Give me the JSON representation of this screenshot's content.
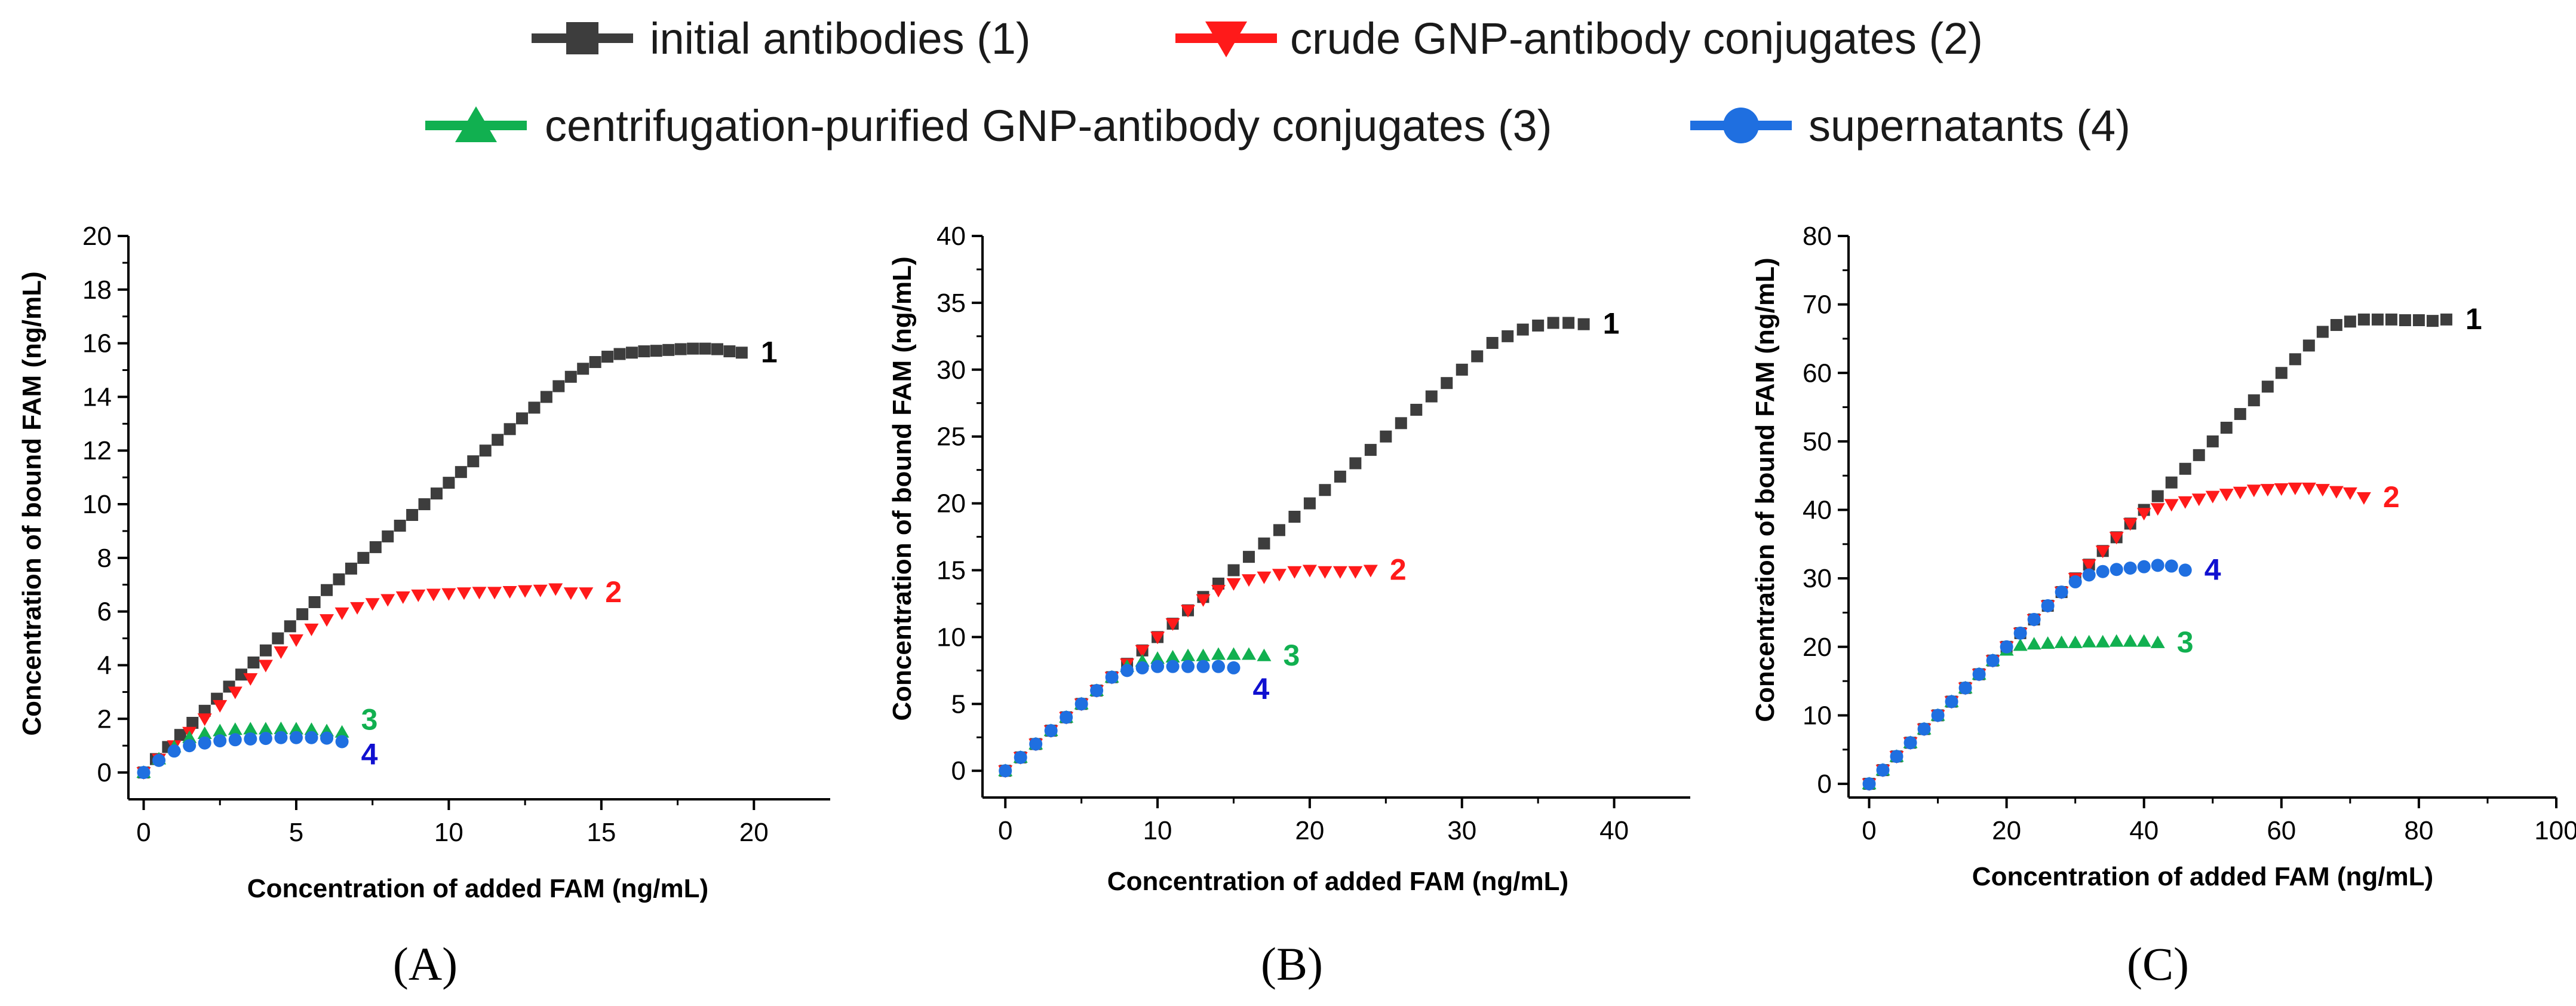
{
  "legend": [
    {
      "id": "s1",
      "label": "initial antibodies (1)",
      "color": "#3d3d3d",
      "marker": "square"
    },
    {
      "id": "s2",
      "label": "crude GNP-antibody conjugates (2)",
      "color": "#ff1a1a",
      "marker": "triangle-down"
    },
    {
      "id": "s3",
      "label": "centrifugation-purified GNP-antibody conjugates (3)",
      "color": "#11b050",
      "marker": "triangle-up"
    },
    {
      "id": "s4",
      "label": "supernatants (4)",
      "color": "#1f6fe0",
      "marker": "circle"
    }
  ],
  "label_colors": {
    "s1": "#000000",
    "s2": "#ff1a1a",
    "s3": "#11b050",
    "s4": "#1010d0"
  },
  "chart_data": [
    {
      "type": "scatter",
      "panel": "(A)",
      "xlabel": "Concentration of added FAM (ng/mL)",
      "ylabel": "Concentration of bound FAM (ng/mL)",
      "xlim": [
        -0.5,
        22.5
      ],
      "ylim": [
        -1,
        20
      ],
      "xticks": [
        0,
        5,
        10,
        15,
        20
      ],
      "yticks": [
        0,
        2,
        4,
        6,
        8,
        10,
        12,
        14,
        16,
        18,
        20
      ],
      "series": [
        {
          "id": "s1",
          "name": "initial antibodies (1)",
          "label": "1",
          "x": [
            0,
            0.4,
            0.8,
            1.2,
            1.6,
            2.0,
            2.4,
            2.8,
            3.2,
            3.6,
            4.0,
            4.4,
            4.8,
            5.2,
            5.6,
            6.0,
            6.4,
            6.8,
            7.2,
            7.6,
            8.0,
            8.4,
            8.8,
            9.2,
            9.6,
            10.0,
            10.4,
            10.8,
            11.2,
            11.6,
            12.0,
            12.4,
            12.8,
            13.2,
            13.6,
            14.0,
            14.4,
            14.8,
            15.2,
            15.6,
            16.0,
            16.4,
            16.8,
            17.2,
            17.6,
            18.0,
            18.4,
            18.8,
            19.2,
            19.6
          ],
          "y": [
            0,
            0.5,
            0.95,
            1.4,
            1.85,
            2.3,
            2.75,
            3.2,
            3.65,
            4.1,
            4.55,
            5.0,
            5.45,
            5.9,
            6.35,
            6.8,
            7.2,
            7.6,
            8.0,
            8.4,
            8.8,
            9.2,
            9.6,
            10.0,
            10.4,
            10.8,
            11.2,
            11.6,
            12.0,
            12.4,
            12.8,
            13.2,
            13.6,
            14.0,
            14.4,
            14.75,
            15.05,
            15.3,
            15.5,
            15.6,
            15.65,
            15.7,
            15.72,
            15.75,
            15.78,
            15.8,
            15.8,
            15.78,
            15.7,
            15.65
          ]
        },
        {
          "id": "s2",
          "name": "crude GNP-antibody conjugates (2)",
          "label": "2",
          "x": [
            0,
            0.5,
            1.0,
            1.5,
            2.0,
            2.5,
            3.0,
            3.5,
            4.0,
            4.5,
            5.0,
            5.5,
            6.0,
            6.5,
            7.0,
            7.5,
            8.0,
            8.5,
            9.0,
            9.5,
            10.0,
            10.5,
            11.0,
            11.5,
            12.0,
            12.5,
            13.0,
            13.5,
            14.0,
            14.5
          ],
          "y": [
            0,
            0.5,
            1.0,
            1.5,
            2.0,
            2.5,
            3.0,
            3.5,
            4.0,
            4.5,
            4.95,
            5.35,
            5.7,
            5.95,
            6.15,
            6.3,
            6.45,
            6.55,
            6.62,
            6.65,
            6.67,
            6.7,
            6.72,
            6.72,
            6.75,
            6.78,
            6.8,
            6.85,
            6.7,
            6.7
          ]
        },
        {
          "id": "s3",
          "name": "centrifugation-purified GNP-antibody conjugates (3)",
          "label": "3",
          "x": [
            0,
            0.5,
            1.0,
            1.5,
            2.0,
            2.5,
            3.0,
            3.5,
            4.0,
            4.5,
            5.0,
            5.5,
            6.0,
            6.5
          ],
          "y": [
            0,
            0.5,
            0.95,
            1.3,
            1.45,
            1.55,
            1.6,
            1.62,
            1.62,
            1.63,
            1.62,
            1.6,
            1.55,
            1.5
          ]
        },
        {
          "id": "s4",
          "name": "supernatants (4)",
          "label": "4",
          "x": [
            0,
            0.5,
            1.0,
            1.5,
            2.0,
            2.5,
            3.0,
            3.5,
            4.0,
            4.5,
            5.0,
            5.5,
            6.0,
            6.5
          ],
          "y": [
            0,
            0.45,
            0.8,
            1.0,
            1.1,
            1.18,
            1.22,
            1.25,
            1.27,
            1.3,
            1.3,
            1.3,
            1.28,
            1.15
          ]
        }
      ]
    },
    {
      "type": "scatter",
      "panel": "(B)",
      "xlabel": "Concentration of added FAM (ng/mL)",
      "ylabel": "Concentration of bound FAM (ng/mL)",
      "xlim": [
        -1.5,
        45
      ],
      "ylim": [
        -2,
        40
      ],
      "xticks": [
        0,
        10,
        20,
        30,
        40
      ],
      "yticks": [
        0,
        5,
        10,
        15,
        20,
        25,
        30,
        35,
        40
      ],
      "series": [
        {
          "id": "s1",
          "name": "initial antibodies (1)",
          "label": "1",
          "x": [
            0,
            1,
            2,
            3,
            4,
            5,
            6,
            7,
            8,
            9,
            10,
            11,
            12,
            13,
            14,
            15,
            16,
            17,
            18,
            19,
            20,
            21,
            22,
            23,
            24,
            25,
            26,
            27,
            28,
            29,
            30,
            31,
            32,
            33,
            34,
            35,
            36,
            37,
            38
          ],
          "y": [
            0,
            1,
            2,
            3,
            4,
            5,
            6,
            7,
            8,
            9,
            10,
            11,
            12,
            13,
            14,
            15,
            16,
            17,
            18,
            19,
            20,
            21,
            22,
            23,
            24,
            25,
            26,
            27,
            28,
            29,
            30,
            31,
            32,
            32.5,
            33,
            33.3,
            33.5,
            33.5,
            33.4
          ]
        },
        {
          "id": "s2",
          "name": "crude GNP-antibody conjugates (2)",
          "label": "2",
          "x": [
            0,
            1,
            2,
            3,
            4,
            5,
            6,
            7,
            8,
            9,
            10,
            11,
            12,
            13,
            14,
            15,
            16,
            17,
            18,
            19,
            20,
            21,
            22,
            23,
            24
          ],
          "y": [
            0,
            1,
            2,
            3,
            4,
            5,
            6,
            7,
            8,
            9,
            10,
            11,
            12,
            12.8,
            13.5,
            14.0,
            14.3,
            14.5,
            14.7,
            14.9,
            15.0,
            14.9,
            14.9,
            14.9,
            15.0
          ]
        },
        {
          "id": "s3",
          "name": "centrifugation-purified GNP-antibody conjugates (3)",
          "label": "3",
          "x": [
            0,
            1,
            2,
            3,
            4,
            5,
            6,
            7,
            8,
            9,
            10,
            11,
            12,
            13,
            14,
            15,
            16,
            17
          ],
          "y": [
            0,
            1,
            2,
            3,
            4,
            5,
            6,
            7,
            7.8,
            8.2,
            8.4,
            8.5,
            8.6,
            8.6,
            8.7,
            8.7,
            8.7,
            8.6
          ]
        },
        {
          "id": "s4",
          "name": "supernatants (4)",
          "label": "4",
          "x": [
            0,
            1,
            2,
            3,
            4,
            5,
            6,
            7,
            8,
            9,
            10,
            11,
            12,
            13,
            14,
            15
          ],
          "y": [
            0,
            1,
            2,
            3,
            4,
            5,
            6,
            7,
            7.5,
            7.7,
            7.8,
            7.8,
            7.8,
            7.8,
            7.8,
            7.7
          ]
        }
      ]
    },
    {
      "type": "scatter",
      "panel": "(C)",
      "xlabel": "Concentration of added FAM (ng/mL)",
      "ylabel": "Concentration of bound FAM (ng/mL)",
      "xlim": [
        -3,
        100
      ],
      "ylim": [
        -2,
        80
      ],
      "xticks": [
        0,
        20,
        40,
        60,
        80,
        100
      ],
      "yticks": [
        0,
        10,
        20,
        30,
        40,
        50,
        60,
        70,
        80
      ],
      "series": [
        {
          "id": "s1",
          "name": "initial antibodies (1)",
          "label": "1",
          "x": [
            0,
            2,
            4,
            6,
            8,
            10,
            12,
            14,
            16,
            18,
            20,
            22,
            24,
            26,
            28,
            30,
            32,
            34,
            36,
            38,
            40,
            42,
            44,
            46,
            48,
            50,
            52,
            54,
            56,
            58,
            60,
            62,
            64,
            66,
            68,
            70,
            72,
            74,
            76,
            78,
            80,
            82,
            84
          ],
          "y": [
            0,
            2,
            4,
            6,
            8,
            10,
            12,
            14,
            16,
            18,
            20,
            22,
            24,
            26,
            28,
            30,
            32,
            34,
            36,
            38,
            40,
            42,
            44,
            46,
            48,
            50,
            52,
            54,
            56,
            58,
            60,
            62,
            64,
            66,
            67,
            67.5,
            67.8,
            67.8,
            67.8,
            67.7,
            67.7,
            67.6,
            67.8
          ]
        },
        {
          "id": "s2",
          "name": "crude GNP-antibody conjugates (2)",
          "label": "2",
          "x": [
            0,
            2,
            4,
            6,
            8,
            10,
            12,
            14,
            16,
            18,
            20,
            22,
            24,
            26,
            28,
            30,
            32,
            34,
            36,
            38,
            40,
            42,
            44,
            46,
            48,
            50,
            52,
            54,
            56,
            58,
            60,
            62,
            64,
            66,
            68,
            70,
            72
          ],
          "y": [
            0,
            2,
            4,
            6,
            8,
            10,
            12,
            14,
            16,
            18,
            20,
            22,
            24,
            26,
            28,
            30,
            32,
            34,
            36,
            38,
            39.5,
            40.2,
            40.8,
            41.2,
            41.6,
            42.0,
            42.3,
            42.6,
            42.9,
            43.0,
            43.1,
            43.2,
            43.2,
            43.0,
            42.7,
            42.5,
            41.8
          ]
        },
        {
          "id": "s3",
          "name": "centrifugation-purified GNP-antibody conjugates (3)",
          "label": "3",
          "x": [
            0,
            2,
            4,
            6,
            8,
            10,
            12,
            14,
            16,
            18,
            20,
            22,
            24,
            26,
            28,
            30,
            32,
            34,
            36,
            38,
            40,
            42
          ],
          "y": [
            0,
            2,
            4,
            6,
            8,
            10,
            12,
            14,
            16,
            18,
            19.5,
            20.2,
            20.4,
            20.5,
            20.6,
            20.6,
            20.7,
            20.7,
            20.8,
            20.8,
            20.8,
            20.6
          ]
        },
        {
          "id": "s4",
          "name": "supernatants (4)",
          "label": "4",
          "x": [
            0,
            2,
            4,
            6,
            8,
            10,
            12,
            14,
            16,
            18,
            20,
            22,
            24,
            26,
            28,
            30,
            32,
            34,
            36,
            38,
            40,
            42,
            44,
            46
          ],
          "y": [
            0,
            2,
            4,
            6,
            8,
            10,
            12,
            14,
            16,
            18,
            20,
            22,
            24,
            26,
            28,
            29.5,
            30.5,
            31.0,
            31.3,
            31.5,
            31.7,
            31.9,
            31.8,
            31.2
          ]
        }
      ]
    }
  ]
}
